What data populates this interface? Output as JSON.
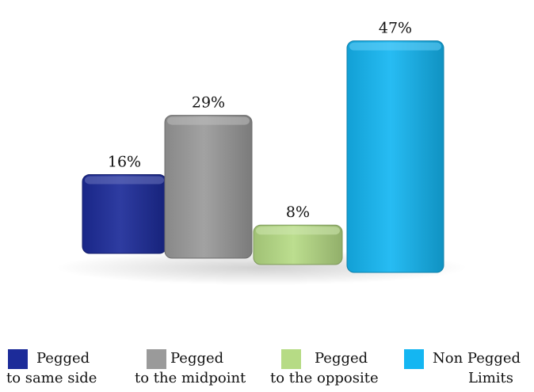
{
  "chart_data": {
    "type": "bar",
    "categories": [
      "Pegged to same side",
      "Pegged to the midpoint",
      "Pegged to the opposite",
      "Non Pegged Limits"
    ],
    "values": [
      16,
      29,
      8,
      47
    ],
    "data_labels": [
      "16%",
      "29%",
      "8%",
      "47%"
    ],
    "colors": [
      "#1c2b99",
      "#9a9a9a",
      "#b6db85",
      "#14b6f2"
    ],
    "legend_placement": "bottom",
    "grid": false,
    "ylim": [
      0,
      50
    ]
  },
  "legend": {
    "items": [
      {
        "line1": "Pegged",
        "line2": "to same side",
        "color": "#1c2b99"
      },
      {
        "line1": "Pegged",
        "line2": "to the midpoint",
        "color": "#9a9a9a"
      },
      {
        "line1": "Pegged",
        "line2": "to the opposite",
        "color": "#b6db85"
      },
      {
        "line1": "Non Pegged",
        "line2": "Limits",
        "color": "#14b6f2"
      }
    ]
  }
}
